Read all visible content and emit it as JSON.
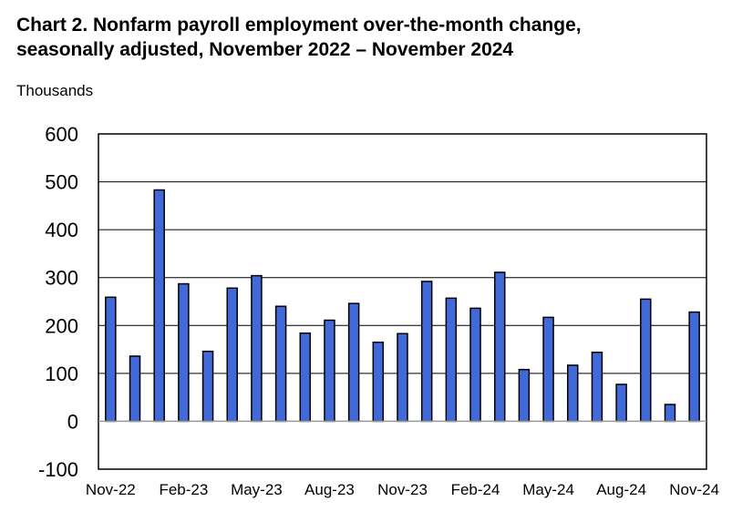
{
  "chart_data": {
    "type": "bar",
    "title_line1": "Chart 2. Nonfarm payroll employment over-the-month change,",
    "title_line2": "seasonally adjusted, November 2022 – November 2024",
    "ylabel": "Thousands",
    "xlabel": "",
    "ylim": [
      -100,
      600
    ],
    "yticks": [
      -100,
      0,
      100,
      200,
      300,
      400,
      500,
      600
    ],
    "grid": true,
    "categories": [
      "Nov-22",
      "Dec-22",
      "Jan-23",
      "Feb-23",
      "Mar-23",
      "Apr-23",
      "May-23",
      "Jun-23",
      "Jul-23",
      "Aug-23",
      "Sep-23",
      "Oct-23",
      "Nov-23",
      "Dec-23",
      "Jan-24",
      "Feb-24",
      "Mar-24",
      "Apr-24",
      "May-24",
      "Jun-24",
      "Jul-24",
      "Aug-24",
      "Sep-24",
      "Oct-24",
      "Nov-24"
    ],
    "xtick_labels": [
      "Nov-22",
      "Feb-23",
      "May-23",
      "Aug-23",
      "Nov-23",
      "Feb-24",
      "May-24",
      "Aug-24",
      "Nov-24"
    ],
    "values": [
      259,
      136,
      483,
      287,
      146,
      278,
      304,
      240,
      184,
      211,
      246,
      165,
      183,
      292,
      257,
      236,
      311,
      108,
      217,
      117,
      144,
      77,
      255,
      35,
      228
    ],
    "bar_color": "#4169d8"
  }
}
